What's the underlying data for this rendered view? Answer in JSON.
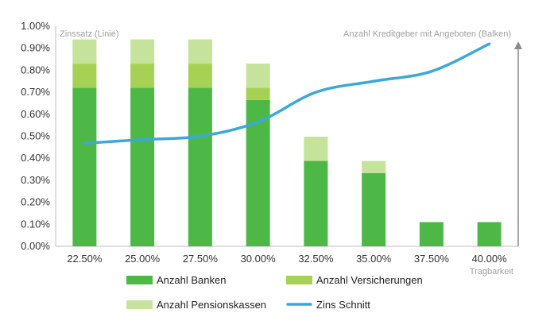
{
  "chart_data": {
    "type": "bar",
    "stacked": true,
    "categories": [
      "22.50%",
      "25.00%",
      "27.50%",
      "30.00%",
      "32.50%",
      "35.00%",
      "37.50%",
      "40.00%"
    ],
    "y_ticks": [
      "0.00%",
      "0.10%",
      "0.20%",
      "0.30%",
      "0.40%",
      "0.50%",
      "0.60%",
      "0.70%",
      "0.80%",
      "0.90%",
      "1.00%"
    ],
    "ylim": [
      0,
      1.0
    ],
    "left_axis_label": "Zinssatz (Linie)",
    "right_axis_label": "Anzahl Kreditgeber mit Angeboten (Balken)",
    "xlabel": "Tragbarkeit",
    "grid": false,
    "legend_position": "bottom",
    "series": [
      {
        "name": "Anzahl Banken",
        "kind": "bar",
        "color": "#4eb847",
        "values": [
          0.72,
          0.72,
          0.72,
          0.665,
          0.388,
          0.333,
          0.11,
          0.11
        ]
      },
      {
        "name": "Anzahl Versicherungen",
        "kind": "bar",
        "color": "#a6d155",
        "values": [
          0.11,
          0.11,
          0.11,
          0.055,
          0.0,
          0.0,
          0.0,
          0.0
        ]
      },
      {
        "name": "Anzahl Pensionskassen",
        "kind": "bar",
        "color": "#c5e39a",
        "values": [
          0.11,
          0.11,
          0.11,
          0.11,
          0.11,
          0.055,
          0.0,
          0.0
        ]
      },
      {
        "name": "Zins Schnitt",
        "kind": "line",
        "color": "#3aa8d9",
        "values": [
          0.468,
          0.485,
          0.5,
          0.565,
          0.7,
          0.75,
          0.795,
          0.92
        ]
      }
    ]
  }
}
